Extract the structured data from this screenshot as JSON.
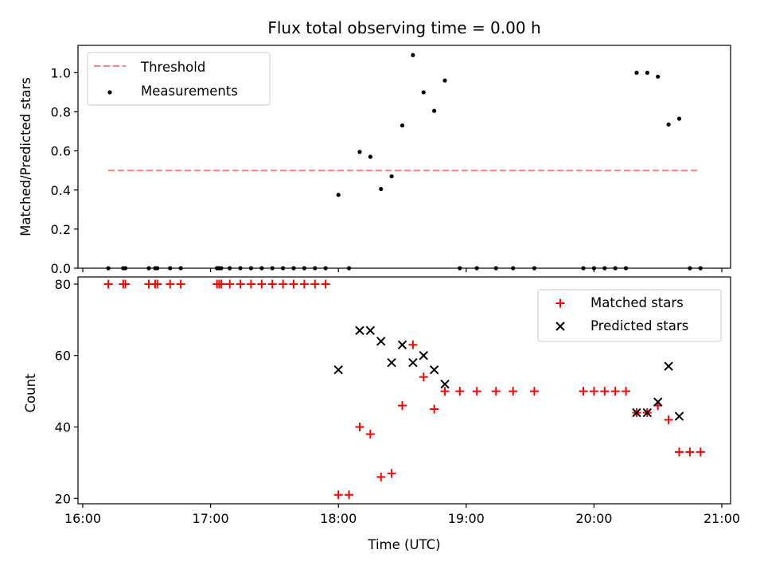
{
  "colors": {
    "threshold": "#ff7f7f",
    "measurements": "#000000",
    "matched": "#ff0000",
    "predicted": "#000000",
    "frame": "#000000",
    "legend_border": "#cccccc"
  },
  "chart_data": [
    {
      "type": "scatter",
      "title": "Flux total observing time = 0.00 h",
      "xlabel": "",
      "ylabel": "Matched/Predicted stars",
      "xlim": [
        "16:00",
        "21:00"
      ],
      "ylim": [
        0,
        1.14
      ],
      "yticks": [
        0.0,
        0.2,
        0.4,
        0.6,
        0.8,
        1.0
      ],
      "ytick_labels": [
        "0.0",
        "0.2",
        "0.4",
        "0.6",
        "0.8",
        "1.0"
      ],
      "grid": false,
      "legend_position": "upper-left",
      "series": [
        {
          "name": "Threshold",
          "kind": "dashed-line",
          "color": "#ff7f7f",
          "x": [
            "16:12",
            "20:50"
          ],
          "y": [
            0.5,
            0.5
          ]
        },
        {
          "name": "Measurements",
          "kind": "scatter-dot",
          "color": "#000000",
          "x": [
            "16:12",
            "16:19",
            "16:20",
            "16:31",
            "16:34",
            "16:35",
            "16:41",
            "16:46",
            "17:03",
            "17:04",
            "17:05",
            "17:09",
            "17:14",
            "17:19",
            "17:24",
            "17:29",
            "17:34",
            "17:39",
            "17:44",
            "17:49",
            "17:54",
            "18:00",
            "18:05",
            "18:10",
            "18:15",
            "18:20",
            "18:25",
            "18:30",
            "18:35",
            "18:40",
            "18:45",
            "18:50",
            "18:57",
            "19:05",
            "19:14",
            "19:22",
            "19:32",
            "19:55",
            "20:00",
            "20:05",
            "20:10",
            "20:15",
            "20:20",
            "20:25",
            "20:30",
            "20:35",
            "20:40",
            "20:45",
            "20:50"
          ],
          "y": [
            0,
            0,
            0,
            0,
            0,
            0,
            0,
            0,
            0,
            0,
            0,
            0,
            0,
            0,
            0,
            0,
            0,
            0,
            0,
            0,
            0,
            0.375,
            0,
            0.595,
            0.57,
            0.405,
            0.47,
            0.73,
            1.09,
            0.9,
            0.805,
            0.96,
            0,
            0,
            0,
            0,
            0,
            0,
            0,
            0,
            0,
            0,
            1.0,
            1.0,
            0.98,
            0.735,
            0.765,
            0,
            0
          ]
        }
      ]
    },
    {
      "type": "scatter",
      "title": "",
      "xlabel": "Time (UTC)",
      "ylabel": "Count",
      "xlim": [
        "16:00",
        "21:00"
      ],
      "xticks": [
        "16:00",
        "17:00",
        "18:00",
        "19:00",
        "20:00",
        "21:00"
      ],
      "xtick_labels": [
        "16:00",
        "17:00",
        "18:00",
        "19:00",
        "20:00",
        "21:00"
      ],
      "ylim": [
        18.5,
        82
      ],
      "yticks": [
        20,
        40,
        60,
        80
      ],
      "ytick_labels": [
        "20",
        "40",
        "60",
        "80"
      ],
      "grid": false,
      "legend_position": "upper-right",
      "series": [
        {
          "name": "Matched stars",
          "kind": "plus",
          "color": "#ff0000",
          "x": [
            "16:12",
            "16:19",
            "16:20",
            "16:31",
            "16:34",
            "16:35",
            "16:41",
            "16:46",
            "17:03",
            "17:04",
            "17:05",
            "17:09",
            "17:14",
            "17:19",
            "17:24",
            "17:29",
            "17:34",
            "17:39",
            "17:44",
            "17:49",
            "17:54",
            "18:00",
            "18:05",
            "18:10",
            "18:15",
            "18:20",
            "18:25",
            "18:30",
            "18:35",
            "18:40",
            "18:45",
            "18:50",
            "18:57",
            "19:05",
            "19:14",
            "19:22",
            "19:32",
            "19:55",
            "20:00",
            "20:05",
            "20:10",
            "20:15",
            "20:20",
            "20:25",
            "20:30",
            "20:35",
            "20:40",
            "20:45",
            "20:50"
          ],
          "y": [
            80,
            80,
            80,
            80,
            80,
            80,
            80,
            80,
            80,
            80,
            80,
            80,
            80,
            80,
            80,
            80,
            80,
            80,
            80,
            80,
            80,
            21,
            21,
            40,
            38,
            26,
            27,
            46,
            63,
            54,
            45,
            50,
            50,
            50,
            50,
            50,
            50,
            50,
            50,
            50,
            50,
            50,
            44,
            44,
            46,
            42,
            33,
            33,
            33
          ]
        },
        {
          "name": "Predicted stars",
          "kind": "x",
          "color": "#000000",
          "x": [
            "18:00",
            "18:10",
            "18:15",
            "18:20",
            "18:25",
            "18:30",
            "18:35",
            "18:40",
            "18:45",
            "18:50",
            "20:20",
            "20:25",
            "20:30",
            "20:35",
            "20:40"
          ],
          "y": [
            56,
            67,
            67,
            64,
            58,
            63,
            58,
            60,
            56,
            52,
            44,
            44,
            47,
            57,
            43
          ]
        }
      ]
    }
  ]
}
